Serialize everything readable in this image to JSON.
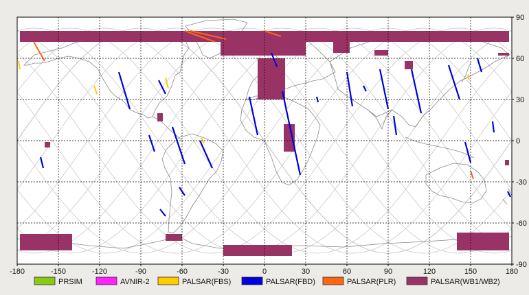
{
  "map": {
    "lon_ticks": [
      "-180",
      "-150",
      "-120",
      "-90",
      "-60",
      "-30",
      "0",
      "30",
      "60",
      "90",
      "120",
      "150",
      "180"
    ],
    "lat_ticks": [
      "90",
      "60",
      "30",
      "0",
      "-30",
      "-60",
      "-90"
    ],
    "lon_range": [
      -180,
      180
    ],
    "lat_range": [
      -90,
      90
    ],
    "grid": "dashed, every 30 degrees",
    "background": "#ffffff",
    "coastline_color": "#888888",
    "orbit_track_color": "#c8c8c8"
  },
  "legend": [
    {
      "label": "PRSIM",
      "color": "#88cc11"
    },
    {
      "label": "AVNIR-2",
      "color": "#ff22ff"
    },
    {
      "label": "PALSAR(FBS)",
      "color": "#ffcc00"
    },
    {
      "label": "PALSAR(FBD)",
      "color": "#0000dd"
    },
    {
      "label": "PALSAR(PLR)",
      "color": "#ff6611"
    },
    {
      "label": "PALSAR(WB1/WB2)",
      "color": "#993366"
    }
  ],
  "observations": {
    "wb": [
      {
        "lon0": -178,
        "lat0": 80,
        "lon1": 178,
        "lat1": 72
      },
      {
        "lon0": -32,
        "lat0": 72,
        "lon1": 30,
        "lat1": 62
      },
      {
        "lon0": -5,
        "lat0": 60,
        "lon1": 15,
        "lat1": 30
      },
      {
        "lon0": 50,
        "lat0": 72,
        "lon1": 62,
        "lat1": 64
      },
      {
        "lon0": 80,
        "lat0": 66,
        "lon1": 90,
        "lat1": 62
      },
      {
        "lon0": 102,
        "lat0": 58,
        "lon1": 108,
        "lat1": 52
      },
      {
        "lon0": 170,
        "lat0": 64,
        "lon1": 178,
        "lat1": 62
      },
      {
        "lon0": -78,
        "lat0": 20,
        "lon1": -74,
        "lat1": 14
      },
      {
        "lon0": 14,
        "lat0": 12,
        "lon1": 22,
        "lat1": -8
      },
      {
        "lon0": -160,
        "lat0": -1,
        "lon1": -156,
        "lat1": -5
      },
      {
        "lon0": 175,
        "lat0": -14,
        "lon1": 178,
        "lat1": -18
      },
      {
        "lon0": -178,
        "lat0": -68,
        "lon1": -140,
        "lat1": -80
      },
      {
        "lon0": -72,
        "lat0": -68,
        "lon1": -60,
        "lat1": -73
      },
      {
        "lon0": -30,
        "lat0": -76,
        "lon1": 20,
        "lat1": -84
      },
      {
        "lon0": 140,
        "lat0": -67,
        "lon1": 178,
        "lat1": -80
      }
    ],
    "fbd": [
      {
        "lon0": -106,
        "lat0": 50,
        "lon1": -98,
        "lat1": 23
      },
      {
        "lon0": -77,
        "lat0": 44,
        "lon1": -72,
        "lat1": 34
      },
      {
        "lon0": -67,
        "lat0": 10,
        "lon1": -58,
        "lat1": -17
      },
      {
        "lon0": -47,
        "lat0": 0,
        "lon1": -38,
        "lat1": -20
      },
      {
        "lon0": -84,
        "lat0": 4,
        "lon1": -80,
        "lat1": -8
      },
      {
        "lon0": -62,
        "lat0": -34,
        "lon1": -58,
        "lat1": -40
      },
      {
        "lon0": -76,
        "lat0": -50,
        "lon1": -72,
        "lat1": -55
      },
      {
        "lon0": -163,
        "lat0": -12,
        "lon1": -161,
        "lat1": -20
      },
      {
        "lon0": 5,
        "lat0": 64,
        "lon1": 9,
        "lat1": 54
      },
      {
        "lon0": -11,
        "lat0": 32,
        "lon1": -5,
        "lat1": 4
      },
      {
        "lon0": 13,
        "lat0": 36,
        "lon1": 26,
        "lat1": -25
      },
      {
        "lon0": 60,
        "lat0": 50,
        "lon1": 64,
        "lat1": 25
      },
      {
        "lon0": 84,
        "lat0": 52,
        "lon1": 90,
        "lat1": 23
      },
      {
        "lon0": 94,
        "lat0": 18,
        "lon1": 96,
        "lat1": 4
      },
      {
        "lon0": 107,
        "lat0": 52,
        "lon1": 114,
        "lat1": 20
      },
      {
        "lon0": 134,
        "lat0": 55,
        "lon1": 142,
        "lat1": 30
      },
      {
        "lon0": 155,
        "lat0": 60,
        "lon1": 158,
        "lat1": 50
      },
      {
        "lon0": 166,
        "lat0": 14,
        "lon1": 167,
        "lat1": 6
      },
      {
        "lon0": 72,
        "lat0": 40,
        "lon1": 74,
        "lat1": 36
      },
      {
        "lon0": 38,
        "lat0": 32,
        "lon1": 39,
        "lat1": 28
      },
      {
        "lon0": 146,
        "lat0": -1,
        "lon1": 150,
        "lat1": -16
      },
      {
        "lon0": 177,
        "lat0": -37,
        "lon1": 179,
        "lat1": -41
      }
    ],
    "fbs": [
      {
        "lon0": -179,
        "lat0": 58,
        "lon1": -178,
        "lat1": 52
      },
      {
        "lon0": -124,
        "lat0": 40,
        "lon1": -122,
        "lat1": 34
      },
      {
        "lon0": -72,
        "lat0": 46,
        "lon1": -70,
        "lat1": 38
      },
      {
        "lon0": -46,
        "lat0": 2,
        "lon1": -44,
        "lat1": -2
      },
      {
        "lon0": 148,
        "lat0": 48,
        "lon1": 149,
        "lat1": 44
      }
    ],
    "plr": [
      {
        "lon0": -168,
        "lat0": 72,
        "lon1": -160,
        "lat1": 58
      },
      {
        "lon0": -58,
        "lat0": 80,
        "lon1": -36,
        "lat1": 72
      },
      {
        "lon0": -54,
        "lat0": 80,
        "lon1": -28,
        "lat1": 74
      },
      {
        "lon0": 0,
        "lat0": 80,
        "lon1": 12,
        "lat1": 76
      },
      {
        "lon0": 150,
        "lat0": -22,
        "lon1": 152,
        "lat1": -28
      }
    ]
  }
}
